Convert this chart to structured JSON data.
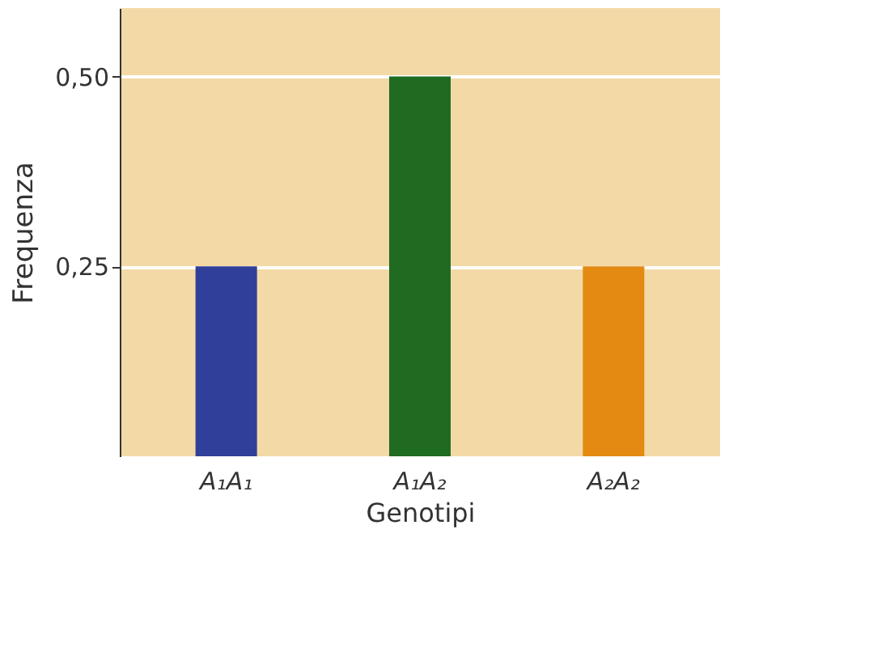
{
  "chart_data": {
    "type": "bar",
    "xlabel": "Genotipi",
    "ylabel": "Frequenza",
    "categories": [
      "A₁A₁",
      "A₁A₂",
      "A₂A₂"
    ],
    "values": [
      0.25,
      0.5,
      0.25
    ],
    "colors": [
      "#2f3f9a",
      "#1f6b22",
      "#e48a12"
    ],
    "ylim": [
      0,
      0.59
    ],
    "yticks": [
      {
        "value": 0.25,
        "label": "0,25"
      },
      {
        "value": 0.5,
        "label": "0,50"
      }
    ],
    "grid": "y"
  }
}
